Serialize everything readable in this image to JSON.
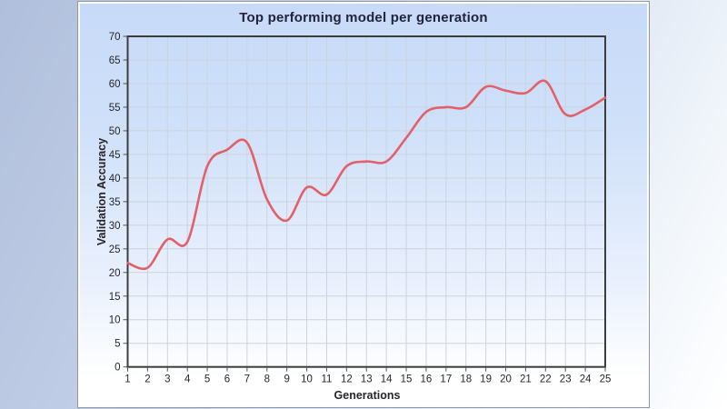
{
  "chart": {
    "title": "Top performing model per generation",
    "colors": {
      "line": "#e26069",
      "plot_border": "#3c3c3c",
      "grid": "#ccd3de",
      "tick": "#555555",
      "label_text": "#26262c",
      "panel_bg_top": "#c7daf8",
      "panel_bg_bottom": "#ffffff"
    }
  },
  "chart_data": {
    "type": "line",
    "title": "Top performing model per generation",
    "xlabel": "Generations",
    "ylabel": "Validation Accuracy",
    "x": [
      1,
      2,
      3,
      4,
      5,
      6,
      7,
      8,
      9,
      10,
      11,
      12,
      13,
      14,
      15,
      16,
      17,
      18,
      19,
      20,
      21,
      22,
      23,
      24,
      25
    ],
    "values": [
      22,
      21,
      27,
      26.5,
      42.5,
      46,
      47.5,
      35.5,
      31,
      38,
      36.5,
      42.5,
      43.5,
      43.5,
      48.5,
      54,
      55,
      55,
      59.3,
      58.5,
      58,
      60.5,
      53.5,
      54.5,
      57
    ],
    "xlim": [
      1,
      25
    ],
    "ylim": [
      0,
      70
    ],
    "x_tick_labels": [
      "1",
      "2",
      "3",
      "4",
      "5",
      "6",
      "7",
      "8",
      "9",
      "10",
      "11",
      "12",
      "13",
      "14",
      "15",
      "16",
      "17",
      "18",
      "19",
      "20",
      "21",
      "22",
      "23",
      "24",
      "25"
    ],
    "y_tick_labels": [
      "0",
      "5",
      "10",
      "15",
      "20",
      "25",
      "30",
      "35",
      "40",
      "45",
      "50",
      "55",
      "60",
      "65",
      "70"
    ],
    "grid": true,
    "legend": false,
    "smooth": true,
    "line_color": "#e26069"
  }
}
